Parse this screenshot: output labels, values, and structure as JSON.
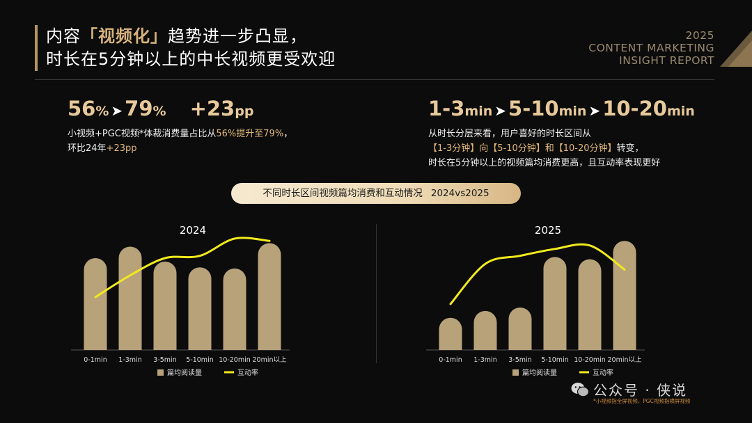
{
  "header": {
    "title_l1_a": "内容",
    "title_l1_hl": "「视频化」",
    "title_l1_b": "趋势进一步凸显，",
    "title_l2": "时长在5分钟以上的中长视频更受欢迎",
    "report_year": "2025",
    "report_l1": "CONTENT MARKETING",
    "report_l2": "INSIGHT REPORT"
  },
  "left_kpi": {
    "from_num": "56",
    "from_unit": "%",
    "to_num": "79",
    "to_unit": "%",
    "delta_num": "+23",
    "delta_unit": "pp",
    "desc_l1_a": "小视频+PGC视频*体裁消费量占比从",
    "desc_l1_hl": "56%提升至79%",
    "desc_l1_b": "，",
    "desc_l2_a": "环比24年",
    "desc_l2_hl": "+23pp"
  },
  "right_kpi": {
    "r1_num": "1-3",
    "r1_unit": "min",
    "r2_num": "5-10",
    "r2_unit": "min",
    "r3_num": "10-20",
    "r3_unit": "min",
    "desc_l1": "从时长分层来看，用户喜好的时长区间从",
    "desc_l2_hl": "【1-3分钟】向【5-10分钟】和【10-20分钟】",
    "desc_l2_b": "转变，",
    "desc_l3": "时长在5分钟以上的视频篇均消费更高，且互动率表现更好"
  },
  "pill": {
    "label": "不同时长区间视频篇均消费和互动情况",
    "years": "2024vs2025"
  },
  "legend": {
    "bar": "篇均阅读量",
    "line": "互动率"
  },
  "colors": {
    "bar": "#b8a27a",
    "line": "#f2ea1c",
    "accent": "#d8b27a"
  },
  "chart_data": [
    {
      "type": "bar",
      "title": "2024",
      "categories": [
        "0-1min",
        "1-3min",
        "3-5min",
        "5-10min",
        "10-20min",
        "20min以上"
      ],
      "series": [
        {
          "name": "篇均阅读量",
          "type": "bar",
          "values": [
            80,
            90,
            77,
            72,
            71,
            93
          ]
        },
        {
          "name": "互动率",
          "type": "line",
          "values": [
            46,
            65,
            80,
            82,
            97,
            95
          ]
        }
      ],
      "ylim": [
        0,
        100
      ]
    },
    {
      "type": "bar",
      "title": "2025",
      "categories": [
        "0-1min",
        "1-3min",
        "3-5min",
        "5-10min",
        "10-20min",
        "20min以上"
      ],
      "series": [
        {
          "name": "篇均阅读量",
          "type": "bar",
          "values": [
            28,
            34,
            37,
            81,
            79,
            95
          ]
        },
        {
          "name": "互动率",
          "type": "line",
          "values": [
            40,
            75,
            82,
            88,
            91,
            70
          ]
        }
      ],
      "ylim": [
        0,
        100
      ]
    }
  ],
  "watermark": {
    "text": "公众号 · 侠说",
    "icon": "wechat-icon"
  },
  "footnote": "*小视频指全屏视频，PGC视频指横屏视频"
}
